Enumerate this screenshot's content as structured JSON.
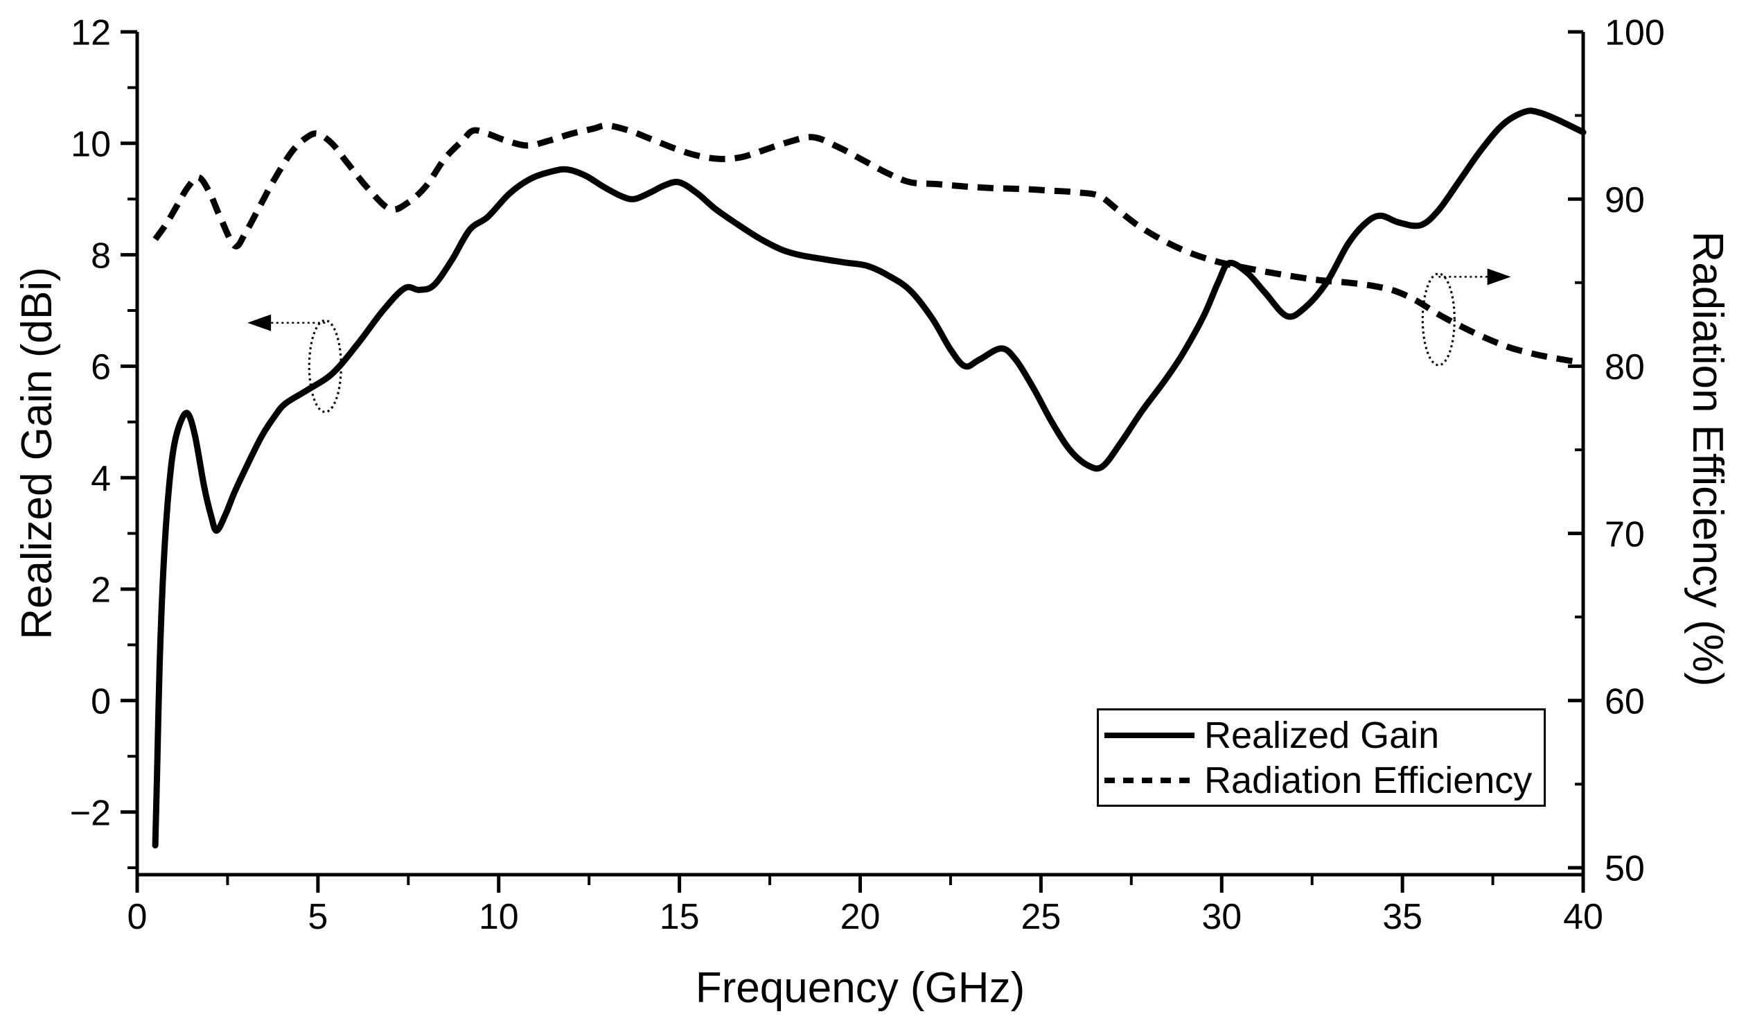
{
  "colors": {
    "background": "#ffffff",
    "foreground": "#000000"
  },
  "chart_data": {
    "type": "line",
    "title": "",
    "xlabel": "Frequency (GHz)",
    "ylabel_left": "Realized Gain (dBi)",
    "ylabel_right": "Radiation Efficiency (%)",
    "grid": false,
    "legend_position": "lower-right",
    "x_axis": {
      "range": [
        0,
        40
      ],
      "ticks_major": [
        0,
        5,
        10,
        15,
        20,
        25,
        30,
        35,
        40
      ],
      "ticks_minor": [
        2.5,
        7.5,
        12.5,
        17.5,
        22.5,
        27.5,
        32.5,
        37.5
      ]
    },
    "y_left": {
      "range": [
        -3,
        12
      ],
      "ticks_major": [
        -2,
        0,
        2,
        4,
        6,
        8,
        10,
        12
      ],
      "ticks_minor": [
        -3,
        -1,
        1,
        3,
        5,
        7,
        9,
        11
      ]
    },
    "y_right": {
      "range": [
        50,
        100
      ],
      "ticks_major": [
        50,
        60,
        70,
        80,
        90,
        100
      ],
      "ticks_minor": [
        55,
        65,
        75,
        85,
        95
      ]
    },
    "series": [
      {
        "name": "Realized Gain",
        "axis": "left",
        "line_style": "solid",
        "color": "#000000",
        "points": [
          [
            0.5,
            -2.6
          ],
          [
            0.55,
            -1.3
          ],
          [
            0.62,
            0.6
          ],
          [
            0.72,
            2.3
          ],
          [
            0.85,
            3.6
          ],
          [
            1.0,
            4.5
          ],
          [
            1.2,
            5.0
          ],
          [
            1.4,
            5.15
          ],
          [
            1.6,
            4.75
          ],
          [
            1.85,
            3.85
          ],
          [
            2.05,
            3.3
          ],
          [
            2.2,
            3.05
          ],
          [
            2.45,
            3.35
          ],
          [
            2.7,
            3.75
          ],
          [
            3.1,
            4.3
          ],
          [
            3.45,
            4.75
          ],
          [
            3.8,
            5.1
          ],
          [
            4.1,
            5.33
          ],
          [
            4.7,
            5.57
          ],
          [
            5.4,
            5.87
          ],
          [
            6.1,
            6.4
          ],
          [
            6.8,
            7.0
          ],
          [
            7.4,
            7.4
          ],
          [
            7.8,
            7.37
          ],
          [
            8.2,
            7.45
          ],
          [
            8.7,
            7.9
          ],
          [
            9.2,
            8.45
          ],
          [
            9.7,
            8.68
          ],
          [
            10.3,
            9.1
          ],
          [
            10.9,
            9.37
          ],
          [
            11.5,
            9.5
          ],
          [
            11.9,
            9.53
          ],
          [
            12.4,
            9.42
          ],
          [
            12.9,
            9.22
          ],
          [
            13.4,
            9.05
          ],
          [
            13.75,
            9.0
          ],
          [
            14.2,
            9.12
          ],
          [
            14.6,
            9.25
          ],
          [
            15.0,
            9.3
          ],
          [
            15.5,
            9.1
          ],
          [
            16.0,
            8.82
          ],
          [
            16.6,
            8.55
          ],
          [
            17.2,
            8.3
          ],
          [
            17.8,
            8.1
          ],
          [
            18.3,
            8.0
          ],
          [
            19.0,
            7.92
          ],
          [
            19.6,
            7.86
          ],
          [
            20.2,
            7.8
          ],
          [
            20.8,
            7.62
          ],
          [
            21.4,
            7.35
          ],
          [
            22.0,
            6.85
          ],
          [
            22.5,
            6.3
          ],
          [
            22.9,
            6.0
          ],
          [
            23.3,
            6.12
          ],
          [
            23.9,
            6.32
          ],
          [
            24.3,
            6.12
          ],
          [
            24.8,
            5.6
          ],
          [
            25.3,
            5.0
          ],
          [
            25.8,
            4.5
          ],
          [
            26.3,
            4.22
          ],
          [
            26.7,
            4.2
          ],
          [
            27.2,
            4.62
          ],
          [
            27.8,
            5.2
          ],
          [
            28.4,
            5.72
          ],
          [
            28.9,
            6.2
          ],
          [
            29.5,
            6.9
          ],
          [
            29.9,
            7.5
          ],
          [
            30.2,
            7.85
          ],
          [
            30.7,
            7.68
          ],
          [
            31.2,
            7.32
          ],
          [
            31.8,
            6.9
          ],
          [
            32.3,
            7.05
          ],
          [
            32.9,
            7.5
          ],
          [
            33.5,
            8.2
          ],
          [
            34.0,
            8.58
          ],
          [
            34.4,
            8.7
          ],
          [
            34.9,
            8.58
          ],
          [
            35.5,
            8.53
          ],
          [
            36.0,
            8.8
          ],
          [
            36.6,
            9.35
          ],
          [
            37.2,
            9.9
          ],
          [
            37.8,
            10.35
          ],
          [
            38.4,
            10.57
          ],
          [
            38.8,
            10.55
          ],
          [
            39.3,
            10.42
          ],
          [
            40,
            10.2
          ]
        ]
      },
      {
        "name": "Radiation Efficiency",
        "axis": "right",
        "line_style": "dashed",
        "color": "#000000",
        "points": [
          [
            0.5,
            87.6
          ],
          [
            0.8,
            88.5
          ],
          [
            1.1,
            89.6
          ],
          [
            1.4,
            90.7
          ],
          [
            1.7,
            91.3
          ],
          [
            2.0,
            90.4
          ],
          [
            2.3,
            88.9
          ],
          [
            2.7,
            87.2
          ],
          [
            3.0,
            88.0
          ],
          [
            3.4,
            89.6
          ],
          [
            3.8,
            91.2
          ],
          [
            4.3,
            92.9
          ],
          [
            4.7,
            93.7
          ],
          [
            5.0,
            93.9
          ],
          [
            5.4,
            93.3
          ],
          [
            5.8,
            92.2
          ],
          [
            6.4,
            90.6
          ],
          [
            7.0,
            89.4
          ],
          [
            7.5,
            89.8
          ],
          [
            8.0,
            90.8
          ],
          [
            8.5,
            92.4
          ],
          [
            9.0,
            93.5
          ],
          [
            9.3,
            94.1
          ],
          [
            9.7,
            93.9
          ],
          [
            10.2,
            93.5
          ],
          [
            10.8,
            93.2
          ],
          [
            11.4,
            93.5
          ],
          [
            12.0,
            93.9
          ],
          [
            12.6,
            94.2
          ],
          [
            13.0,
            94.4
          ],
          [
            13.6,
            94.1
          ],
          [
            14.2,
            93.6
          ],
          [
            14.9,
            93.0
          ],
          [
            15.5,
            92.6
          ],
          [
            16.1,
            92.4
          ],
          [
            16.7,
            92.5
          ],
          [
            17.3,
            92.9
          ],
          [
            18.0,
            93.4
          ],
          [
            18.7,
            93.7
          ],
          [
            19.4,
            93.1
          ],
          [
            20.1,
            92.3
          ],
          [
            20.8,
            91.5
          ],
          [
            21.4,
            91.0
          ],
          [
            22.1,
            90.9
          ],
          [
            22.9,
            90.75
          ],
          [
            23.7,
            90.65
          ],
          [
            24.5,
            90.6
          ],
          [
            25.3,
            90.5
          ],
          [
            26.0,
            90.4
          ],
          [
            26.6,
            90.2
          ],
          [
            27.1,
            89.4
          ],
          [
            27.7,
            88.4
          ],
          [
            28.4,
            87.5
          ],
          [
            29.1,
            86.8
          ],
          [
            29.8,
            86.3
          ],
          [
            30.4,
            86.0
          ],
          [
            31.1,
            85.7
          ],
          [
            31.9,
            85.4
          ],
          [
            32.7,
            85.15
          ],
          [
            33.5,
            85.0
          ],
          [
            34.2,
            84.8
          ],
          [
            34.8,
            84.5
          ],
          [
            35.4,
            83.9
          ],
          [
            36.0,
            83.1
          ],
          [
            36.7,
            82.3
          ],
          [
            37.4,
            81.6
          ],
          [
            38.0,
            81.1
          ],
          [
            38.7,
            80.7
          ],
          [
            39.3,
            80.45
          ],
          [
            40,
            80.2
          ]
        ]
      }
    ],
    "annotations": [
      {
        "id": "gain-axis-pointer",
        "axis": "left",
        "f": 5.2,
        "value": 6.0,
        "direction": "left",
        "arrow_tip_f": 3.05,
        "arrow_value": 6.78
      },
      {
        "id": "efficiency-axis-pointer",
        "axis": "right",
        "f": 36.0,
        "value": 82.8,
        "direction": "right",
        "arrow_tip_f": 38.0,
        "arrow_value": 85.35
      }
    ]
  }
}
